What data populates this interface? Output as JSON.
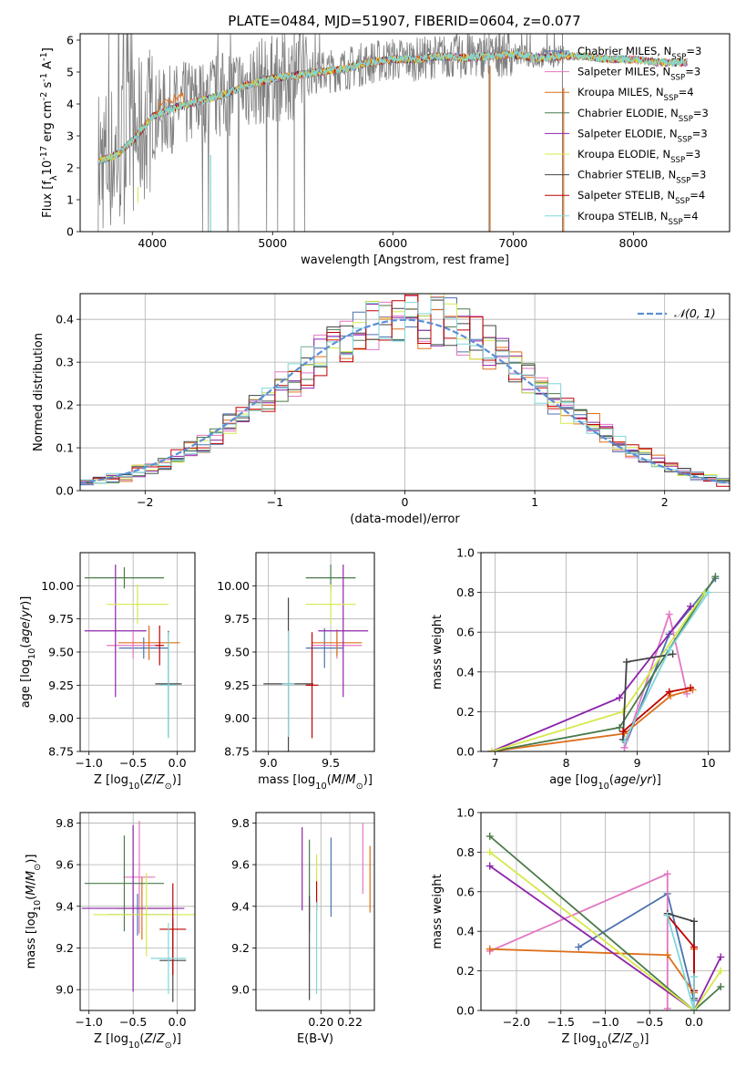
{
  "title": "PLATE=0484, MJD=51907, FIBERID=0604, z=0.077",
  "models": [
    {
      "label": "Chabrier MILES, N<sub>SSP</sub>=3",
      "color": "#4c72b0"
    },
    {
      "label": "Salpeter MILES, N<sub>SSP</sub>=3",
      "color": "#e377c2"
    },
    {
      "label": "Kroupa MILES, N<sub>SSP</sub>=4",
      "color": "#dd6f1b"
    },
    {
      "label": "Chabrier ELODIE, N<sub>SSP</sub>=3",
      "color": "#4a7a4a"
    },
    {
      "label": "Salpeter ELODIE, N<sub>SSP</sub>=3",
      "color": "#8e24aa"
    },
    {
      "label": "Kroupa ELODIE, N<sub>SSP</sub>=3",
      "color": "#d6e84a"
    },
    {
      "label": "Chabrier STELIB, N<sub>SSP</sub>=3",
      "color": "#444444"
    },
    {
      "label": "Salpeter STELIB, N<sub>SSP</sub>=4",
      "color": "#c00000"
    },
    {
      "label": "Kroupa STELIB, N<sub>SSP</sub>=4",
      "color": "#7fd6d8"
    }
  ],
  "chart_data": [
    {
      "type": "line",
      "title": "PLATE=0484, MJD=51907, FIBERID=0604, z=0.077",
      "xlabel": "wavelength [Angstrom, rest frame]",
      "ylabel": "Flux [f<sub>λ</sub>10<sup>-17</sup> erg cm<sup>-2</sup> s<sup>-1</sup> A<sup>-1</sup>]",
      "xlim": [
        3400,
        8800
      ],
      "ylim": [
        0,
        6.2
      ],
      "xticks": [
        4000,
        5000,
        6000,
        7000,
        8000
      ],
      "yticks": [
        0,
        1,
        2,
        3,
        4,
        5,
        6
      ],
      "data_color": "#808080",
      "legend": "top-right",
      "data_spectrum": {
        "x": [
          3550,
          3700,
          3850,
          4000,
          4200,
          4400,
          4600,
          4800,
          5000,
          5200,
          5400,
          5600,
          5800,
          6000,
          6200,
          6400,
          6600,
          6800,
          7000,
          7200,
          7400,
          7600,
          7800,
          8000,
          8200,
          8400
        ],
        "y": [
          2.2,
          2.4,
          2.9,
          3.6,
          3.9,
          4.1,
          4.3,
          4.6,
          4.8,
          4.9,
          5.0,
          5.1,
          5.3,
          5.4,
          5.4,
          5.5,
          5.45,
          5.5,
          5.55,
          5.45,
          5.5,
          5.5,
          5.4,
          5.4,
          5.3,
          5.3
        ]
      }
    },
    {
      "type": "histogram",
      "xlabel": "(data-model)/error",
      "ylabel": "Normed distribution",
      "xlim": [
        -2.5,
        2.5
      ],
      "ylim": [
        0,
        0.46
      ],
      "xticks": [
        -2,
        -1,
        0,
        1,
        2
      ],
      "yticks": [
        0.0,
        0.1,
        0.2,
        0.3,
        0.4
      ],
      "reference_label": "𝒩(0, 1)",
      "reference_color": "#5b8fd6",
      "bin_width": 0.1,
      "bins_start": -2.5,
      "normal_pdf": [
        0.018,
        0.022,
        0.028,
        0.035,
        0.044,
        0.054,
        0.066,
        0.079,
        0.094,
        0.111,
        0.13,
        0.15,
        0.171,
        0.194,
        0.217,
        0.242,
        0.266,
        0.29,
        0.312,
        0.333,
        0.352,
        0.368,
        0.381,
        0.391,
        0.397,
        0.399,
        0.397,
        0.391,
        0.381,
        0.368,
        0.352,
        0.333,
        0.312,
        0.29,
        0.266,
        0.242,
        0.217,
        0.194,
        0.171,
        0.15,
        0.13,
        0.111,
        0.094,
        0.079,
        0.066,
        0.054,
        0.044,
        0.035,
        0.028,
        0.022,
        0.018
      ]
    },
    {
      "type": "scatter",
      "panel": "age-vs-metallicity",
      "xlabel": "Z [log<sub>10</sub>(<i>Z</i>/<i>Z</i><sub>⊙</sub>)]",
      "ylabel": "age  [log<sub>10</sub>(<i>age</i>/<i>yr</i>)]",
      "xlim": [
        -1.1,
        0.2
      ],
      "ylim": [
        8.75,
        10.25
      ],
      "xticks": [
        -1.0,
        -0.5,
        0.0
      ],
      "yticks": [
        8.75,
        9.0,
        9.25,
        9.5,
        9.75,
        10.0
      ],
      "points": [
        {
          "m": 0,
          "x": -0.38,
          "y": 9.53,
          "xe": 0.28,
          "ye": 0.08
        },
        {
          "m": 1,
          "x": -0.5,
          "y": 9.55,
          "xe": 0.3,
          "ye": 0.1
        },
        {
          "m": 2,
          "x": -0.32,
          "y": 9.57,
          "xe": 0.35,
          "ye": 0.13
        },
        {
          "m": 3,
          "x": -0.6,
          "y": 10.06,
          "xe": 0.45,
          "ye": 0.08
        },
        {
          "m": 4,
          "x": -0.7,
          "y": 9.66,
          "xe": 0.35,
          "ye": 0.5
        },
        {
          "m": 5,
          "x": -0.45,
          "y": 9.86,
          "xe": 0.35,
          "ye": 0.15
        },
        {
          "m": 6,
          "x": -0.1,
          "y": 9.26,
          "xe": 0.15,
          "ye": 0.4
        },
        {
          "m": 7,
          "x": -0.2,
          "y": 9.55,
          "xe": 0.05,
          "ye": 0.15
        },
        {
          "m": 8,
          "x": -0.1,
          "y": 9.25,
          "xe": 0.1,
          "ye": 0.4
        }
      ]
    },
    {
      "type": "scatter",
      "panel": "age-vs-mass",
      "xlabel": "mass [log<sub>10</sub>(<i>M</i>/<i>M</i><sub>⊙</sub>)]",
      "ylabel": "",
      "xlim": [
        8.9,
        9.85
      ],
      "ylim": [
        8.75,
        10.25
      ],
      "xticks": [
        9.0,
        9.5
      ],
      "yticks": [
        8.75,
        9.0,
        9.25,
        9.5,
        9.75,
        10.0
      ],
      "points": [
        {
          "m": 0,
          "x": 9.45,
          "y": 9.53,
          "xe": 0.15,
          "ye": 0.15
        },
        {
          "m": 1,
          "x": 9.55,
          "y": 9.55,
          "xe": 0.2,
          "ye": 0.1
        },
        {
          "m": 2,
          "x": 9.55,
          "y": 9.57,
          "xe": 0.2,
          "ye": 0.1
        },
        {
          "m": 3,
          "x": 9.5,
          "y": 10.06,
          "xe": 0.2,
          "ye": 0.1
        },
        {
          "m": 4,
          "x": 9.6,
          "y": 9.66,
          "xe": 0.2,
          "ye": 0.5
        },
        {
          "m": 5,
          "x": 9.5,
          "y": 9.86,
          "xe": 0.2,
          "ye": 0.15
        },
        {
          "m": 6,
          "x": 9.16,
          "y": 9.26,
          "xe": 0.2,
          "ye": 0.65
        },
        {
          "m": 7,
          "x": 9.35,
          "y": 9.25,
          "xe": 0.05,
          "ye": 0.4
        },
        {
          "m": 8,
          "x": 9.16,
          "y": 9.26,
          "xe": 0.05,
          "ye": 0.4
        }
      ]
    },
    {
      "type": "line",
      "panel": "mass-weight-vs-age",
      "xlabel": "age  [log<sub>10</sub>(<i>age</i>/<i>yr</i>)]",
      "ylabel": "mass weight",
      "xlim": [
        6.8,
        10.3
      ],
      "ylim": [
        0,
        1.0
      ],
      "xticks": [
        7,
        8,
        9,
        10
      ],
      "yticks": [
        0.0,
        0.2,
        0.4,
        0.6,
        0.8,
        1.0
      ],
      "series": [
        {
          "m": 0,
          "x": [
            8.82,
            9.45,
            10.1
          ],
          "y": [
            0.02,
            0.59,
            0.87
          ]
        },
        {
          "m": 1,
          "x": [
            8.82,
            9.45,
            9.7
          ],
          "y": [
            0.02,
            0.69,
            0.29
          ]
        },
        {
          "m": 2,
          "x": [
            6.95,
            8.82,
            9.47,
            9.78
          ],
          "y": [
            0.0,
            0.09,
            0.28,
            0.31
          ]
        },
        {
          "m": 3,
          "x": [
            6.95,
            8.75,
            10.1
          ],
          "y": [
            0.0,
            0.12,
            0.88
          ]
        },
        {
          "m": 4,
          "x": [
            6.95,
            8.75,
            9.75
          ],
          "y": [
            0.0,
            0.27,
            0.73
          ]
        },
        {
          "m": 5,
          "x": [
            6.95,
            8.8,
            9.95
          ],
          "y": [
            0.0,
            0.2,
            0.8
          ]
        },
        {
          "m": 6,
          "x": [
            8.8,
            8.85,
            9.5
          ],
          "y": [
            0.06,
            0.45,
            0.49
          ]
        },
        {
          "m": 7,
          "x": [
            8.8,
            9.45,
            9.75
          ],
          "y": [
            0.1,
            0.3,
            0.32
          ]
        },
        {
          "m": 8,
          "x": [
            8.82,
            9.45,
            10.0
          ],
          "y": [
            0.05,
            0.51,
            0.8
          ]
        }
      ]
    },
    {
      "type": "scatter",
      "panel": "mass-vs-metallicity",
      "xlabel": "Z [log<sub>10</sub>(<i>Z</i>/<i>Z</i><sub>⊙</sub>)]",
      "ylabel": "mass [log<sub>10</sub>(<i>M</i>/<i>M</i><sub>⊙</sub>)]",
      "xlim": [
        -1.1,
        0.2
      ],
      "ylim": [
        8.9,
        9.85
      ],
      "xticks": [
        -1.0,
        -0.5,
        0.0
      ],
      "yticks": [
        9.0,
        9.2,
        9.4,
        9.6,
        9.8
      ],
      "points": [
        {
          "m": 0,
          "x": -0.45,
          "y": 9.36,
          "xe": 0.35,
          "ye": 0.1
        },
        {
          "m": 1,
          "x": -0.43,
          "y": 9.54,
          "xe": 0.18,
          "ye": 0.27
        },
        {
          "m": 2,
          "x": -0.4,
          "y": 9.39,
          "xe": 0.3,
          "ye": 0.15
        },
        {
          "m": 3,
          "x": -0.6,
          "y": 9.51,
          "xe": 0.45,
          "ye": 0.23
        },
        {
          "m": 4,
          "x": -0.5,
          "y": 9.39,
          "xe": 0.58,
          "ye": 0.4
        },
        {
          "m": 5,
          "x": -0.35,
          "y": 9.36,
          "xe": 0.6,
          "ye": 0.2
        },
        {
          "m": 6,
          "x": -0.05,
          "y": 9.14,
          "xe": 0.15,
          "ye": 0.2
        },
        {
          "m": 7,
          "x": -0.05,
          "y": 9.29,
          "xe": 0.15,
          "ye": 0.22
        },
        {
          "m": 8,
          "x": -0.1,
          "y": 9.15,
          "xe": 0.2,
          "ye": 0.17
        }
      ]
    },
    {
      "type": "scatter",
      "panel": "mass-vs-ebv",
      "xlabel": "E(B-V)",
      "ylabel": "",
      "xlim": [
        0.155,
        0.237
      ],
      "ylim": [
        8.9,
        9.85
      ],
      "xticks": [
        0.2,
        0.22
      ],
      "yticks": [
        9.0,
        9.2,
        9.4,
        9.6,
        9.8
      ],
      "points": [
        {
          "m": 0,
          "x": 0.207,
          "y": 9.54,
          "xe": 0,
          "ye": 0.19
        },
        {
          "m": 1,
          "x": 0.229,
          "y": 9.63,
          "xe": 0,
          "ye": 0.17
        },
        {
          "m": 2,
          "x": 0.234,
          "y": 9.53,
          "xe": 0,
          "ye": 0.16
        },
        {
          "m": 3,
          "x": 0.192,
          "y": 9.5,
          "xe": 0,
          "ye": 0.22
        },
        {
          "m": 4,
          "x": 0.187,
          "y": 9.58,
          "xe": 0,
          "ye": 0.2
        },
        {
          "m": 5,
          "x": 0.197,
          "y": 9.5,
          "xe": 0,
          "ye": 0.15
        },
        {
          "m": 6,
          "x": 0.192,
          "y": 9.2,
          "xe": 0,
          "ye": 0.25
        },
        {
          "m": 7,
          "x": 0.197,
          "y": 9.45,
          "xe": 0,
          "ye": 0.07
        },
        {
          "m": 8,
          "x": 0.197,
          "y": 9.2,
          "xe": 0,
          "ye": 0.22
        }
      ]
    },
    {
      "type": "line",
      "panel": "mass-weight-vs-metallicity",
      "xlabel": "Z [log<sub>10</sub>(<i>Z</i>/<i>Z</i><sub>⊙</sub>)]",
      "ylabel": "mass weight",
      "xlim": [
        -2.4,
        0.4
      ],
      "ylim": [
        0,
        1.0
      ],
      "xticks": [
        -2.0,
        -1.5,
        -1.0,
        -0.5,
        0.0
      ],
      "yticks": [
        0.0,
        0.2,
        0.4,
        0.6,
        0.8,
        1.0
      ],
      "series": [
        {
          "m": 0,
          "x": [
            -1.3,
            -0.3,
            0.0
          ],
          "y": [
            0.32,
            0.59,
            0.05
          ]
        },
        {
          "m": 1,
          "x": [
            -2.3,
            -0.3,
            -0.3
          ],
          "y": [
            0.3,
            0.69,
            0.01
          ]
        },
        {
          "m": 2,
          "x": [
            -2.3,
            -0.3,
            0.0,
            0.0
          ],
          "y": [
            0.31,
            0.28,
            0.09,
            0.31
          ]
        },
        {
          "m": 3,
          "x": [
            -2.3,
            0.0,
            0.3
          ],
          "y": [
            0.88,
            0.0,
            0.12
          ]
        },
        {
          "m": 4,
          "x": [
            -2.3,
            0.0,
            0.3
          ],
          "y": [
            0.73,
            0.0,
            0.27
          ]
        },
        {
          "m": 5,
          "x": [
            -2.3,
            0.0,
            0.3
          ],
          "y": [
            0.8,
            0.0,
            0.2
          ]
        },
        {
          "m": 6,
          "x": [
            -0.3,
            0.0,
            0.0
          ],
          "y": [
            0.49,
            0.45,
            0.06
          ]
        },
        {
          "m": 7,
          "x": [
            -0.3,
            0.0,
            0.0
          ],
          "y": [
            0.48,
            0.32,
            0.1
          ]
        },
        {
          "m": 8,
          "x": [
            -0.3,
            0.0,
            0.0
          ],
          "y": [
            0.48,
            0.0,
            0.17
          ]
        }
      ]
    }
  ]
}
